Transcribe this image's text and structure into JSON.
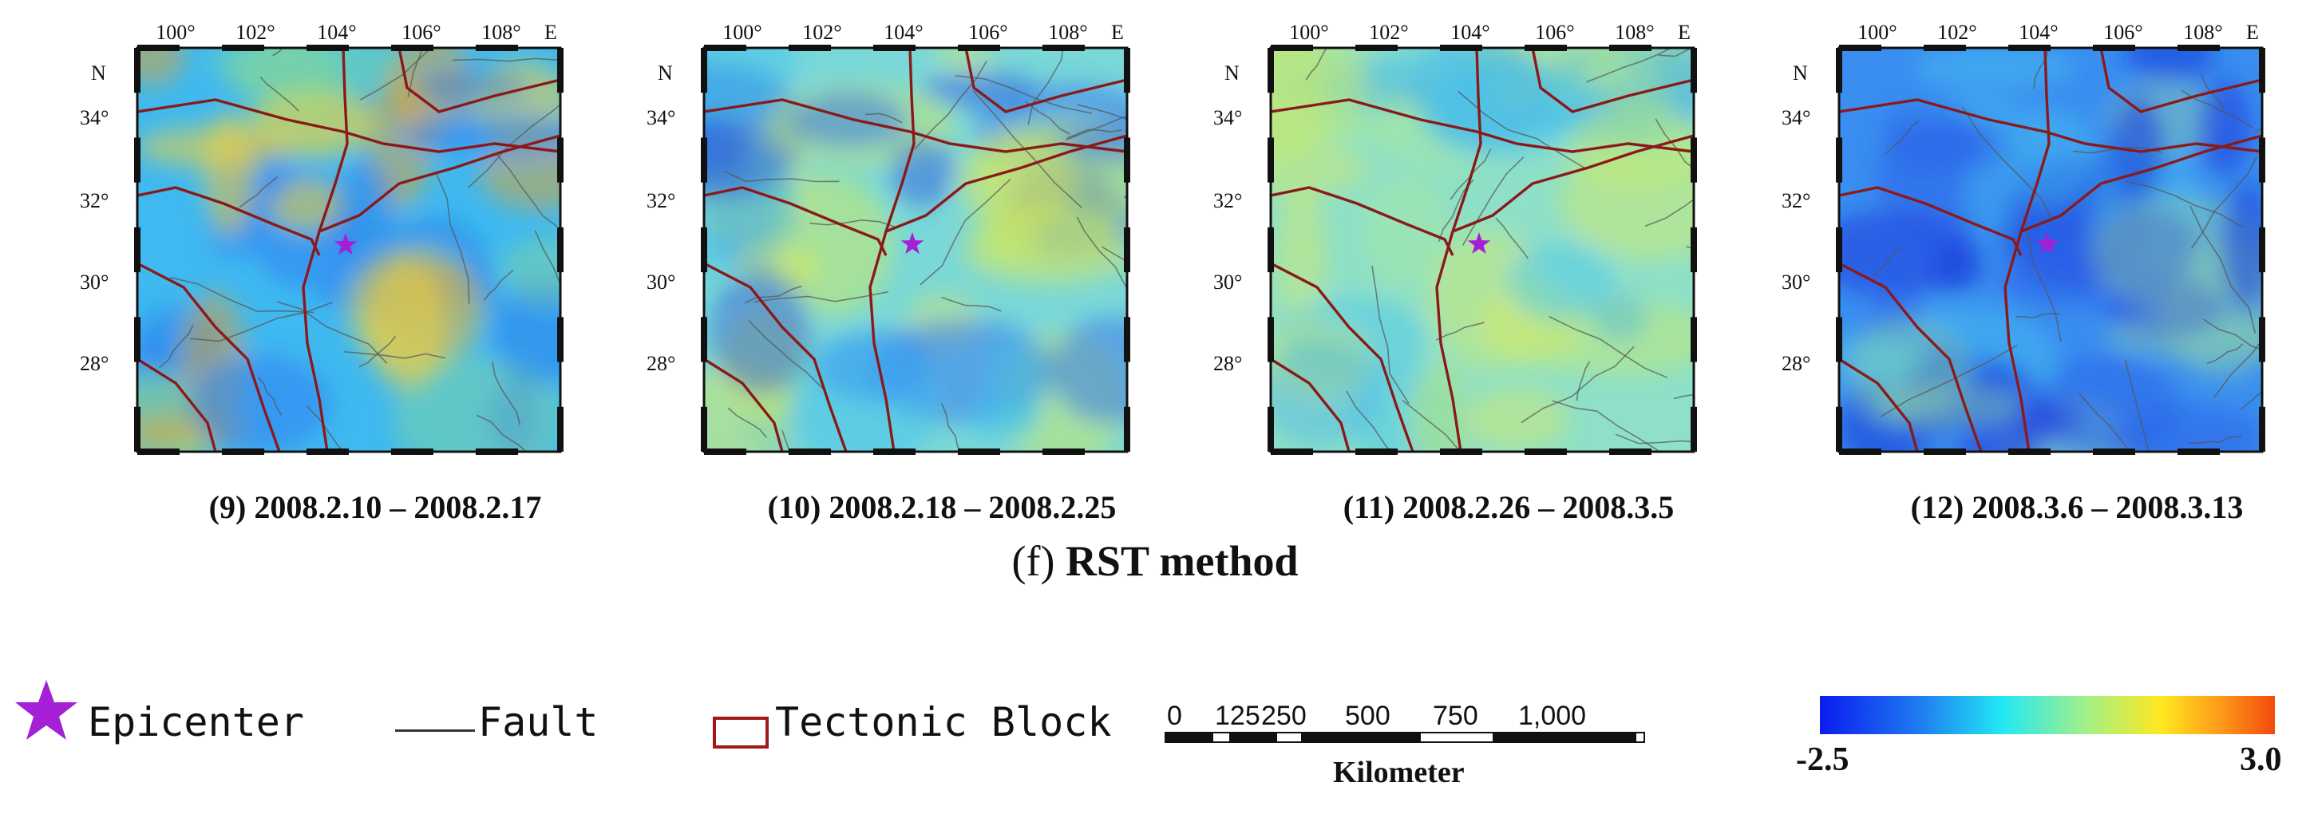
{
  "axes": {
    "x_ticks": [
      "100°",
      "102°",
      "104°",
      "106°",
      "108°"
    ],
    "x_unit": "E",
    "y_unit": "N",
    "y_ticks": [
      "34°",
      "32°",
      "30°",
      "28°"
    ]
  },
  "panels": [
    {
      "caption": "(9) 2008.2.10 – 2008.2.17",
      "scheme": "warm"
    },
    {
      "caption": "(10) 2008.2.18 – 2008.2.25",
      "scheme": "mixed"
    },
    {
      "caption": "(11) 2008.2.26 – 2008.3.5",
      "scheme": "neutral"
    },
    {
      "caption": "(12) 2008.3.6 – 2008.3.13",
      "scheme": "cool"
    }
  ],
  "section_title_paren": "(f)",
  "section_title_text": " RST method",
  "legend": {
    "epicenter": "Epicenter",
    "fault": "Fault",
    "tectonic_block": "Tectonic Block",
    "epicenter_color": "#a51fd6",
    "block_color": "#a01818"
  },
  "scalebar": {
    "ticks": [
      "0",
      "125",
      "250",
      "500",
      "750",
      "1,000"
    ],
    "unit": "Kilometer"
  },
  "colorbar": {
    "min_label": "-2.5",
    "max_label": "3.0",
    "colors": [
      "#0a1cf0",
      "#22e8f5",
      "#ffe820",
      "#f24a0c"
    ]
  }
}
